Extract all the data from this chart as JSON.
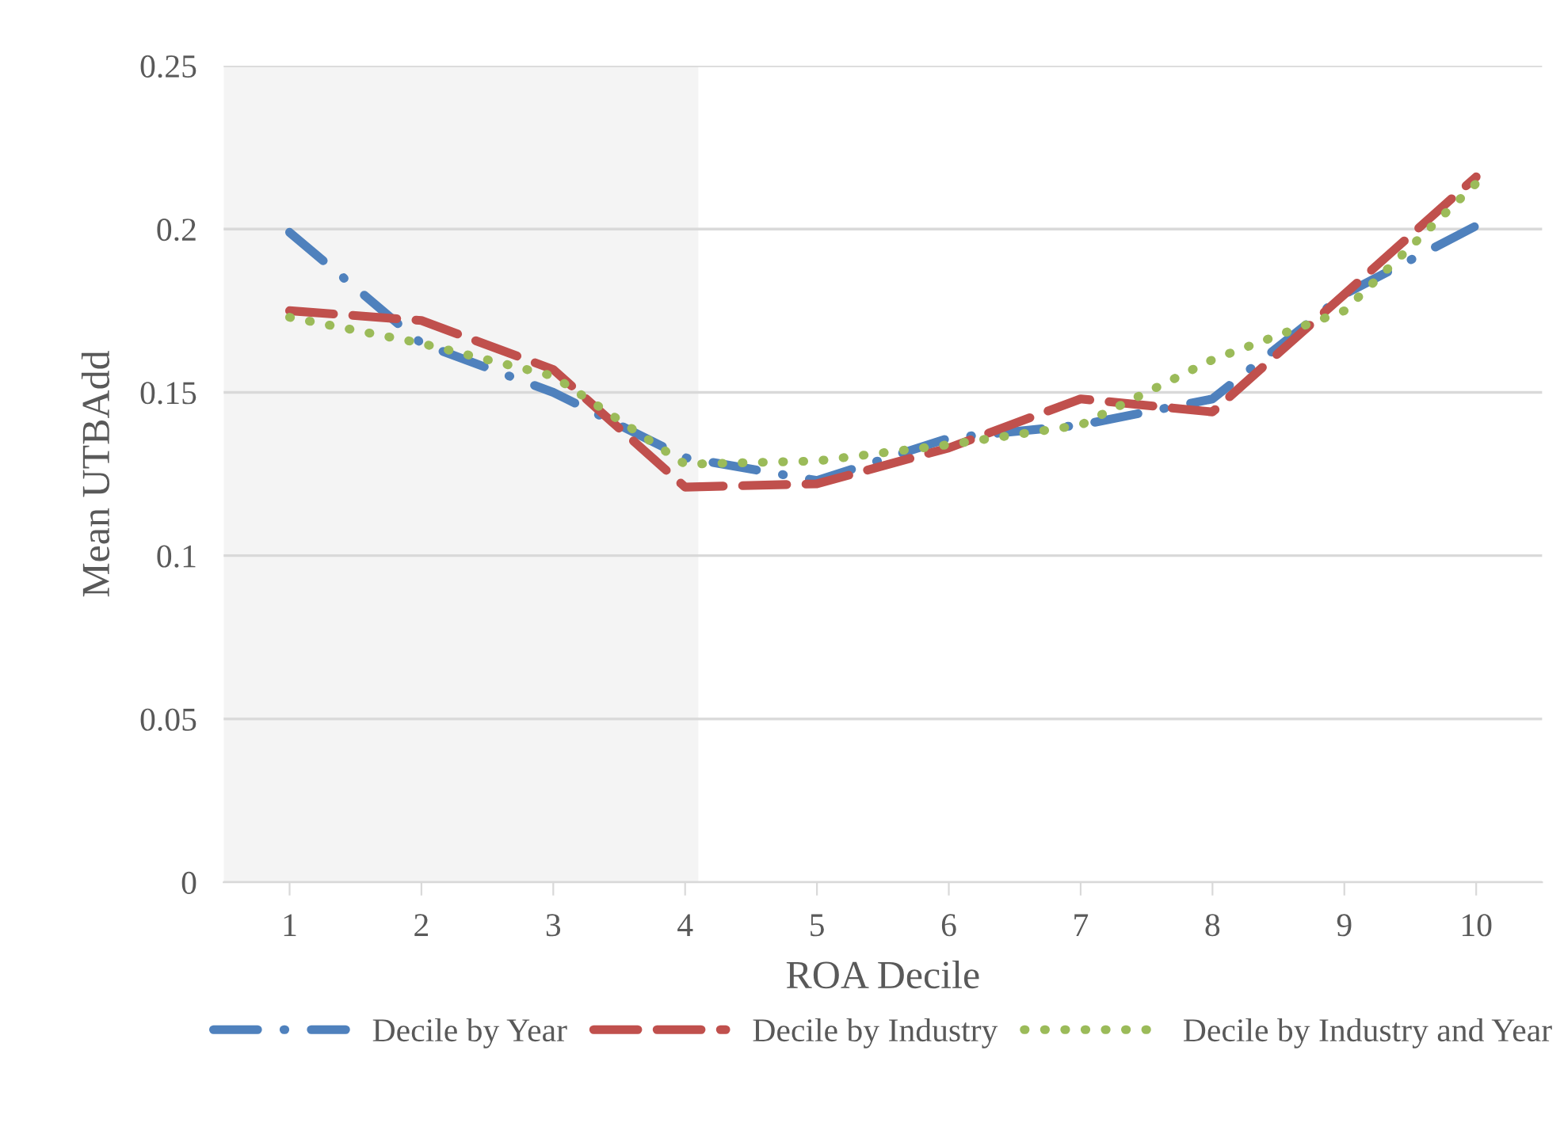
{
  "chart_data": {
    "type": "line",
    "xlabel": "ROA Decile",
    "ylabel": "Mean UTBAdd",
    "x": [
      1,
      2,
      3,
      4,
      5,
      6,
      7,
      8,
      9,
      10
    ],
    "xlim": [
      0.5,
      10.5
    ],
    "xticks": [
      1,
      2,
      3,
      4,
      5,
      6,
      7,
      8,
      9,
      10
    ],
    "ylim": [
      0,
      0.25
    ],
    "yticks": [
      0,
      0.05,
      0.1,
      0.15,
      0.2,
      0.25
    ],
    "grid": "y",
    "legend": "bottom",
    "bands": [
      {
        "axis": "x",
        "from": 0.5,
        "to": 4.1,
        "color": "#f4f4f4"
      }
    ],
    "series": [
      {
        "name": "Decile by Year",
        "color": "#4f81bd",
        "line_style": "dashdot",
        "values": [
          0.199,
          0.165,
          0.15,
          0.13,
          0.123,
          0.136,
          0.14,
          0.148,
          0.18,
          0.201
        ]
      },
      {
        "name": "Decile by Industry",
        "color": "#c0504d",
        "line_style": "dashed",
        "values": [
          0.175,
          0.172,
          0.157,
          0.121,
          0.122,
          0.133,
          0.148,
          0.144,
          0.18,
          0.216
        ]
      },
      {
        "name": "Decile by Industry and Year",
        "color": "#9bbb59",
        "line_style": "dotted",
        "values": [
          0.173,
          0.165,
          0.155,
          0.128,
          0.129,
          0.134,
          0.14,
          0.16,
          0.175,
          0.214
        ]
      }
    ]
  }
}
